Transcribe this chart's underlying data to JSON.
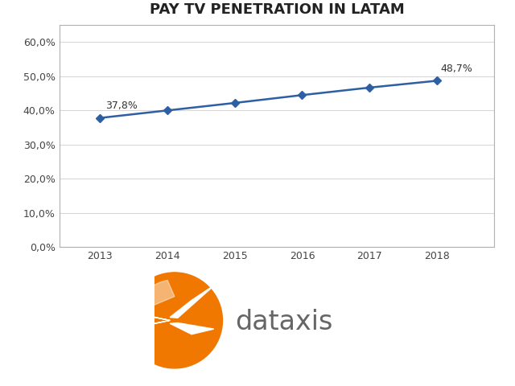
{
  "title": "PAY TV PENETRATION IN LATAM",
  "years": [
    2013,
    2014,
    2015,
    2016,
    2017,
    2018
  ],
  "values": [
    37.8,
    40.0,
    42.2,
    44.5,
    46.7,
    48.7
  ],
  "ylim": [
    0,
    65
  ],
  "yticks": [
    0,
    10,
    20,
    30,
    40,
    50,
    60
  ],
  "ytick_labels": [
    "0,0%",
    "10,0%",
    "20,0%",
    "30,0%",
    "40,0%",
    "50,0%",
    "60,0%"
  ],
  "line_color": "#2e5fa3",
  "marker_color": "#2e5fa3",
  "label_first": "37,8%",
  "label_last": "48,7%",
  "title_fontsize": 13,
  "tick_fontsize": 9,
  "annotation_fontsize": 9,
  "background_color": "#ffffff",
  "chart_bg": "#ffffff",
  "border_color": "#b0b0b0",
  "grid_color": "#d8d8d8",
  "dataxis_text_color": "#666666",
  "dataxis_orange": "#f07800",
  "logo_text": "dataxis"
}
